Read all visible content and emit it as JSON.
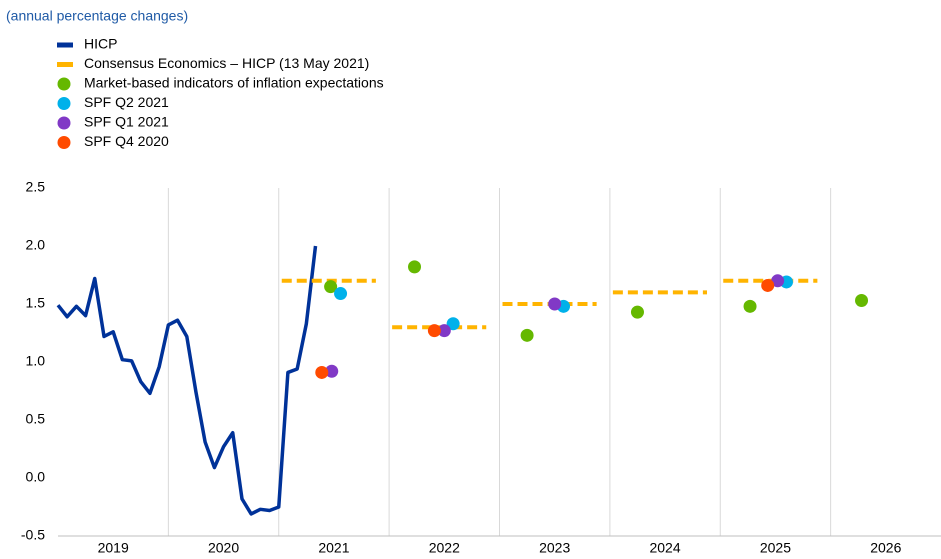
{
  "chart_data": {
    "type": "line",
    "subtitle": "(annual percentage changes)",
    "categories": [
      "2019",
      "2020",
      "2021",
      "2022",
      "2023",
      "2024",
      "2025",
      "2026"
    ],
    "xlim": [
      2019,
      2027
    ],
    "xticks": [
      2020,
      2021,
      2022,
      2023,
      2024,
      2025,
      2026
    ],
    "ylim": [
      -0.5,
      2.5
    ],
    "yticks": [
      {
        "value": -0.5,
        "label": "-0.5"
      },
      {
        "value": 0,
        "label": "0.0"
      },
      0.5,
      {
        "value": 1,
        "label": "1.0"
      },
      1.5,
      {
        "value": 2,
        "label": "2.0"
      },
      2.5
    ],
    "series": [
      {
        "name": "HICP",
        "type": "line",
        "color": "#003299",
        "x": [
          2019.0,
          2019.083,
          2019.167,
          2019.25,
          2019.333,
          2019.417,
          2019.5,
          2019.583,
          2019.667,
          2019.75,
          2019.833,
          2019.917,
          2020.0,
          2020.083,
          2020.167,
          2020.25,
          2020.333,
          2020.417,
          2020.5,
          2020.583,
          2020.667,
          2020.75,
          2020.833,
          2020.917,
          2021.0,
          2021.083,
          2021.167,
          2021.25,
          2021.333
        ],
        "values": [
          1.49,
          1.39,
          1.48,
          1.4,
          1.72,
          1.22,
          1.26,
          1.02,
          1.01,
          0.83,
          0.73,
          0.96,
          1.32,
          1.36,
          1.22,
          0.74,
          0.31,
          0.09,
          0.27,
          0.39,
          -0.18,
          -0.31,
          -0.27,
          -0.28,
          -0.25,
          0.91,
          0.94,
          1.33,
          2.0
        ]
      },
      {
        "name": "Consensus Economics – HICP (13 May 2021)",
        "type": "dash",
        "color": "#ffb400",
        "x": [
          2021,
          2022,
          2023,
          2024,
          2025
        ],
        "values": [
          1.7,
          1.3,
          1.5,
          1.6,
          1.7
        ]
      },
      {
        "name": "Market-based indicators of inflation expectations",
        "type": "scatter",
        "color": "#65b800",
        "x": [
          2021.47,
          2022.23,
          2023.25,
          2024.25,
          2025.27,
          2026.28
        ],
        "values": [
          1.65,
          1.82,
          1.23,
          1.43,
          1.48,
          1.53
        ]
      },
      {
        "name": "SPF Q2 2021",
        "type": "scatter",
        "color": "#00b1ea",
        "x": [
          2021.56,
          2022.58,
          2023.58,
          2025.6
        ],
        "values": [
          1.59,
          1.33,
          1.48,
          1.69
        ]
      },
      {
        "name": "SPF Q1 2021",
        "type": "scatter",
        "color": "#8139c6",
        "x": [
          2021.48,
          2022.5,
          2023.5,
          2025.52
        ],
        "values": [
          0.92,
          1.27,
          1.5,
          1.7
        ]
      },
      {
        "name": "SPF Q4 2020",
        "type": "scatter",
        "color": "#ff4b00",
        "x": [
          2021.39,
          2022.41,
          2025.43
        ],
        "values": [
          0.91,
          1.27,
          1.66
        ]
      }
    ]
  }
}
